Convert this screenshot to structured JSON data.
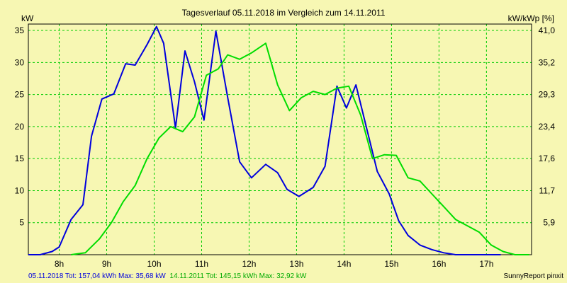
{
  "chart_data": {
    "type": "line",
    "title": "Tagesverlauf 05.11.2018 im Vergleich zum 14.11.2011",
    "ylabel_left": "kW",
    "ylabel_right": "kW/kWp [%]",
    "x_ticks": [
      "8h",
      "9h",
      "10h",
      "11h",
      "12h",
      "13h",
      "14h",
      "15h",
      "16h",
      "17h"
    ],
    "xlim": [
      7.35,
      17.95
    ],
    "y_ticks_left": [
      "5",
      "10",
      "15",
      "20",
      "25",
      "30",
      "35"
    ],
    "y_ticks_right": [
      "5,9",
      "11,7",
      "17,6",
      "23,4",
      "29,3",
      "35,2",
      "41,0"
    ],
    "ylim": [
      0,
      36
    ],
    "grid": true,
    "series": [
      {
        "name": "05.11.2018",
        "color": "#0000dd",
        "x": [
          7.35,
          7.6,
          7.85,
          8.0,
          8.25,
          8.5,
          8.68,
          8.9,
          9.15,
          9.4,
          9.6,
          9.85,
          10.05,
          10.2,
          10.45,
          10.65,
          10.85,
          11.05,
          11.3,
          11.55,
          11.8,
          12.05,
          12.35,
          12.6,
          12.8,
          13.05,
          13.35,
          13.6,
          13.85,
          14.05,
          14.25,
          14.5,
          14.7,
          14.95,
          15.15,
          15.35,
          15.6,
          15.85,
          16.1,
          16.35,
          16.6,
          16.85,
          17.1,
          17.3
        ],
        "values": [
          0,
          0,
          0.5,
          1.2,
          5.5,
          7.8,
          18.5,
          24.3,
          25.1,
          29.8,
          29.6,
          32.8,
          35.6,
          33.0,
          19.8,
          31.8,
          27.0,
          21.0,
          34.9,
          24.5,
          14.5,
          12.0,
          14.1,
          12.8,
          10.2,
          9.1,
          10.5,
          13.8,
          26.3,
          22.9,
          26.5,
          19.0,
          13.0,
          9.5,
          5.3,
          3.0,
          1.5,
          0.8,
          0.3,
          0,
          0,
          0,
          0,
          0
        ]
      },
      {
        "name": "14.11.2011",
        "color": "#00dd00",
        "x": [
          8.25,
          8.55,
          8.85,
          9.1,
          9.35,
          9.6,
          9.85,
          10.1,
          10.35,
          10.6,
          10.85,
          11.1,
          11.35,
          11.55,
          11.8,
          12.05,
          12.35,
          12.6,
          12.85,
          13.1,
          13.35,
          13.6,
          13.85,
          14.1,
          14.35,
          14.6,
          14.85,
          15.1,
          15.35,
          15.6,
          15.85,
          16.1,
          16.35,
          16.6,
          16.85,
          17.1,
          17.35,
          17.6,
          17.9
        ],
        "values": [
          0,
          0.3,
          2.5,
          5.0,
          8.3,
          10.8,
          15.0,
          18.2,
          20.0,
          19.2,
          21.5,
          28.0,
          29.0,
          31.2,
          30.5,
          31.5,
          33.0,
          26.5,
          22.5,
          24.5,
          25.5,
          25.0,
          26.0,
          26.3,
          21.8,
          15.0,
          15.6,
          15.5,
          12.0,
          11.5,
          9.5,
          7.5,
          5.5,
          4.5,
          3.5,
          1.5,
          0.5,
          0,
          0
        ]
      }
    ]
  },
  "footer": {
    "legend_1": "05.11.2018 Tot: 157,04 kWh Max: 35,68 kW",
    "legend_2": "14.11.2011 Tot: 145,15 kWh Max: 32,92 kW",
    "brand": "SunnyReport pinxit"
  }
}
